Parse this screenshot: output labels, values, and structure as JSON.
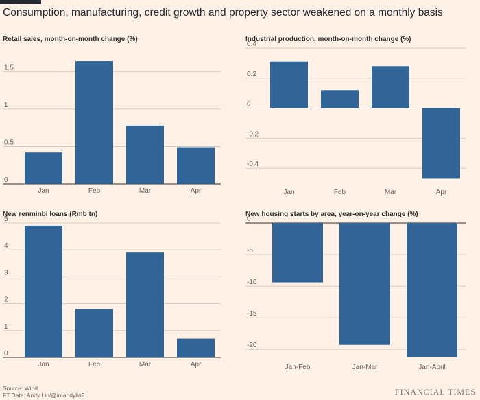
{
  "headline": "Consumption, manufacturing, credit growth and property sector weakened on a monthly basis",
  "source_line1": "Source: Wind",
  "source_line2": "FT Data: Andy Lin/@imandylin2",
  "brand": "FINANCIAL TIMES",
  "colors": {
    "bar": "#326597",
    "grid": "#d9cdc3",
    "axis": "#33302e",
    "background": "#fff1e5"
  },
  "chart_data": [
    {
      "type": "bar",
      "title": "Retail sales, month-on-month change (%)",
      "categories": [
        "Jan",
        "Feb",
        "Mar",
        "Apr"
      ],
      "values": [
        0.42,
        1.64,
        0.78,
        0.49
      ],
      "ylim": [
        0,
        1.65
      ],
      "yticks": [
        0,
        0.5,
        1,
        1.5
      ],
      "ytick_labels": [
        "0",
        "0.5",
        "1",
        "1.5"
      ]
    },
    {
      "type": "bar",
      "title": "Industrial production, month-on-month change (%)",
      "categories": [
        "Jan",
        "Feb",
        "Mar",
        "Apr"
      ],
      "values": [
        0.31,
        0.12,
        0.28,
        -0.47
      ],
      "ylim": [
        -0.5,
        0.4
      ],
      "yticks": [
        -0.4,
        -0.2,
        0,
        0.2,
        0.4
      ],
      "ytick_labels": [
        "-0.4",
        "-0.2",
        "0",
        "0.2",
        "0.4"
      ]
    },
    {
      "type": "bar",
      "title": "New renminbi loans (Rmb tn)",
      "categories": [
        "Jan",
        "Feb",
        "Mar",
        "Apr"
      ],
      "values": [
        4.9,
        1.8,
        3.9,
        0.7
      ],
      "ylim": [
        0,
        5
      ],
      "yticks": [
        0,
        1,
        2,
        3,
        4,
        5
      ],
      "ytick_labels": [
        "0",
        "1",
        "2",
        "3",
        "4",
        "5"
      ]
    },
    {
      "type": "bar",
      "title": "New housing starts by area, year-on-year change (%)",
      "categories": [
        "Jan-Feb",
        "Jan-Mar",
        "Jan-April"
      ],
      "values": [
        -9.4,
        -19.3,
        -21.2
      ],
      "ylim": [
        -21.5,
        0
      ],
      "yticks": [
        -20,
        -15,
        -10,
        -5,
        0
      ],
      "ytick_labels": [
        "-20",
        "-15",
        "-10",
        "-5",
        "0"
      ]
    }
  ]
}
